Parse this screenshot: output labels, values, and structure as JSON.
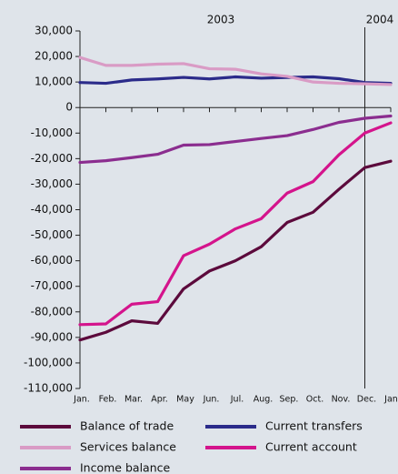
{
  "chart_data": {
    "type": "line",
    "annotations": [
      "2003",
      "2004"
    ],
    "categories": [
      "Jan.",
      "Feb.",
      "Mar.",
      "Apr.",
      "May",
      "Jun.",
      "Jul.",
      "Aug.",
      "Sep.",
      "Oct.",
      "Nov.",
      "Dec.",
      "Jan."
    ],
    "series": [
      {
        "name": "Balance of trade",
        "color": "#5c0a3c",
        "values": [
          -91000,
          -88000,
          -83500,
          -84500,
          -71000,
          -64000,
          -60000,
          -54500,
          -45000,
          -41000,
          -32000,
          -23500,
          -21000
        ]
      },
      {
        "name": "Current transfers",
        "color": "#2b2b8a",
        "values": [
          9800,
          9500,
          10800,
          11200,
          11800,
          11200,
          12000,
          11500,
          11800,
          12000,
          11300,
          9800,
          9500
        ]
      },
      {
        "name": "Services balance",
        "color": "#d99bc5",
        "values": [
          19600,
          16500,
          16500,
          17000,
          17200,
          15200,
          15000,
          13200,
          12200,
          10000,
          9500,
          9300,
          9000
        ]
      },
      {
        "name": "Current account",
        "color": "#d4148c",
        "values": [
          -85000,
          -84700,
          -77000,
          -76000,
          -58000,
          -53500,
          -47500,
          -43500,
          -33500,
          -29000,
          -18500,
          -10000,
          -6000
        ]
      },
      {
        "name": "Income balance",
        "color": "#8b2d8f",
        "values": [
          -21500,
          -20800,
          -19600,
          -18300,
          -14700,
          -14500,
          -13300,
          -12100,
          -11000,
          -8600,
          -5800,
          -4200,
          -3300
        ]
      }
    ],
    "ylim": [
      -110000,
      30000
    ],
    "yticks": [
      {
        "value": 30000,
        "label": "30,000"
      },
      {
        "value": 20000,
        "label": "20,000"
      },
      {
        "value": 10000,
        "label": "10,000"
      },
      0,
      {
        "value": -10000,
        "label": "-10,000"
      },
      {
        "value": -20000,
        "label": "-20,000"
      },
      {
        "value": -30000,
        "label": "-30,000"
      },
      {
        "value": -40000,
        "label": "-40,000"
      },
      {
        "value": -50000,
        "label": "-50,000"
      },
      {
        "value": -60000,
        "label": "-60,000"
      },
      {
        "value": -70000,
        "label": "-70,000"
      },
      {
        "value": -80000,
        "label": "-80,000"
      },
      {
        "value": -90000,
        "label": "-90,000"
      },
      {
        "value": -100000,
        "label": "-100,000"
      },
      {
        "value": -110000,
        "label": "-110,000"
      }
    ],
    "grid": false
  }
}
